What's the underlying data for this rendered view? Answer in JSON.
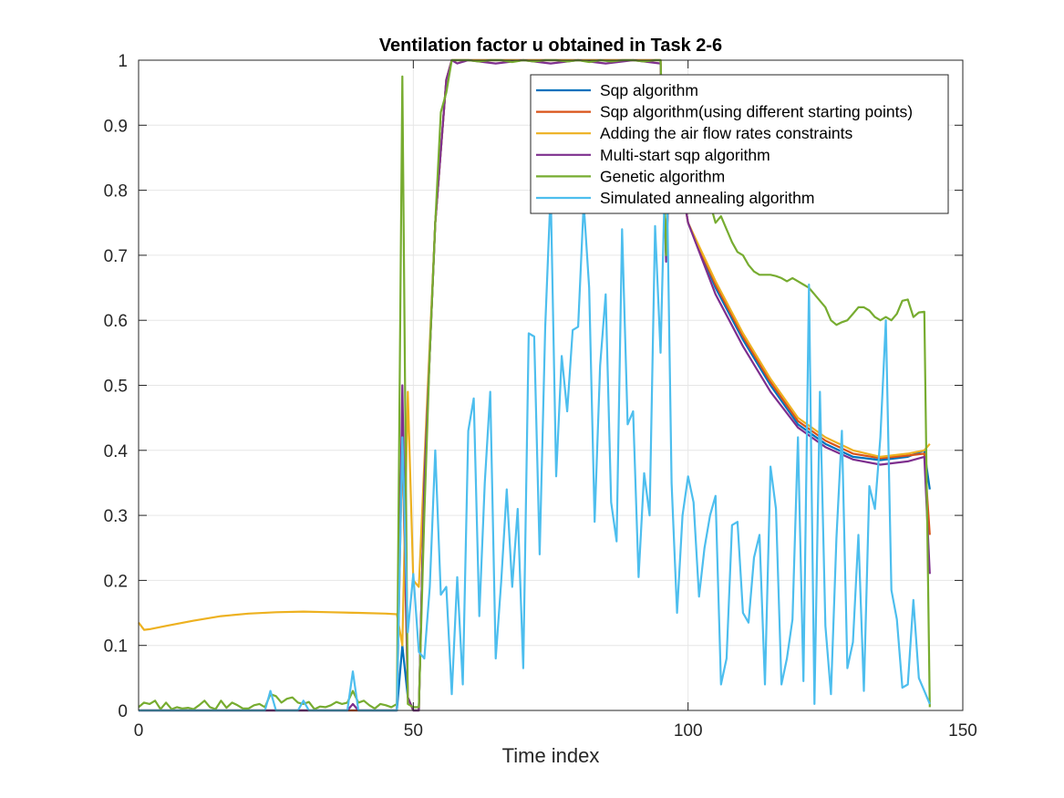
{
  "chart_data": {
    "type": "line",
    "title": "Ventilation factor u obtained in Task 2-6",
    "xlabel": "Time index",
    "ylabel": "",
    "xlim": [
      0,
      150
    ],
    "ylim": [
      0,
      1
    ],
    "xticks": [
      0,
      50,
      100,
      150
    ],
    "yticks": [
      0,
      0.1,
      0.2,
      0.3,
      0.4,
      0.5,
      0.6,
      0.7,
      0.8,
      0.9,
      1
    ],
    "xtick_labels": [
      "0",
      "50",
      "100",
      "150"
    ],
    "ytick_labels": [
      "0",
      "0.1",
      "0.2",
      "0.3",
      "0.4",
      "0.5",
      "0.6",
      "0.7",
      "0.8",
      "0.9",
      "1"
    ],
    "grid": true,
    "legend_position": "top-right",
    "series": [
      {
        "name": "Sqp algorithm",
        "color": "#0072BD",
        "x": [
          0,
          46,
          47,
          48,
          49,
          50,
          51,
          52,
          54,
          56,
          57,
          60,
          70,
          80,
          90,
          95,
          96,
          97,
          98,
          99,
          100,
          105,
          110,
          115,
          120,
          125,
          130,
          135,
          140,
          143,
          144
        ],
        "y": [
          0,
          0,
          0,
          0.1,
          0.02,
          0,
          0,
          0.35,
          0.75,
          0.97,
          1,
          1,
          1,
          1,
          1,
          1,
          0.7,
          0.93,
          0.82,
          0.8,
          0.75,
          0.65,
          0.57,
          0.5,
          0.44,
          0.41,
          0.39,
          0.385,
          0.39,
          0.4,
          0.34
        ]
      },
      {
        "name": "Sqp algorithm(using different starting points)",
        "color": "#D95319",
        "x": [
          0,
          46,
          47,
          48,
          49,
          50,
          51,
          52,
          54,
          56,
          57,
          60,
          70,
          80,
          90,
          95,
          96,
          97,
          98,
          99,
          100,
          105,
          110,
          115,
          120,
          125,
          130,
          135,
          140,
          143,
          144
        ],
        "y": [
          0,
          0,
          0,
          0.42,
          0.02,
          0,
          0,
          0.35,
          0.75,
          0.97,
          1,
          1,
          1,
          1,
          1,
          1,
          0.7,
          0.93,
          0.82,
          0.8,
          0.75,
          0.655,
          0.575,
          0.505,
          0.445,
          0.415,
          0.395,
          0.388,
          0.392,
          0.395,
          0.27
        ]
      },
      {
        "name": "Adding the air flow rates constraints",
        "color": "#EDB120",
        "x": [
          0,
          1,
          2,
          5,
          10,
          15,
          20,
          25,
          30,
          35,
          40,
          45,
          47,
          48,
          49,
          50,
          51,
          52,
          54,
          56,
          57,
          60,
          70,
          80,
          90,
          95,
          96,
          97,
          98,
          99,
          100,
          105,
          110,
          115,
          120,
          125,
          130,
          135,
          140,
          143,
          144
        ],
        "y": [
          0.135,
          0.124,
          0.125,
          0.13,
          0.138,
          0.145,
          0.149,
          0.151,
          0.152,
          0.151,
          0.15,
          0.149,
          0.148,
          0.1,
          0.49,
          0.2,
          0.19,
          0.38,
          0.75,
          0.97,
          1,
          1,
          1,
          1,
          1,
          1,
          0.7,
          0.93,
          0.82,
          0.8,
          0.75,
          0.66,
          0.58,
          0.51,
          0.45,
          0.42,
          0.4,
          0.39,
          0.395,
          0.4,
          0.41
        ]
      },
      {
        "name": "Multi-start sqp algorithm",
        "color": "#7E2F8E",
        "x": [
          0,
          38,
          39,
          40,
          41,
          46,
          47,
          48,
          49,
          50,
          51,
          52,
          54,
          56,
          57,
          58,
          60,
          65,
          70,
          75,
          80,
          85,
          90,
          95,
          96,
          97,
          98,
          99,
          100,
          105,
          110,
          115,
          120,
          125,
          130,
          135,
          140,
          143,
          144
        ],
        "y": [
          0,
          0,
          0.01,
          0,
          0,
          0,
          0,
          0.5,
          0.02,
          0,
          0,
          0.35,
          0.75,
          0.97,
          1,
          0.995,
          1,
          0.995,
          1,
          0.995,
          1,
          0.995,
          1,
          0.995,
          0.69,
          0.93,
          0.82,
          0.8,
          0.75,
          0.64,
          0.56,
          0.49,
          0.435,
          0.405,
          0.386,
          0.378,
          0.383,
          0.39,
          0.21
        ]
      },
      {
        "name": "Genetic algorithm",
        "color": "#77AC30",
        "x": [
          0,
          1,
          2,
          3,
          4,
          5,
          6,
          7,
          8,
          9,
          10,
          11,
          12,
          13,
          14,
          15,
          16,
          17,
          18,
          19,
          20,
          21,
          22,
          23,
          24,
          25,
          26,
          27,
          28,
          29,
          30,
          31,
          32,
          33,
          34,
          35,
          36,
          37,
          38,
          39,
          40,
          41,
          42,
          43,
          44,
          45,
          46,
          47,
          48,
          49,
          50,
          51,
          52,
          53,
          54,
          55,
          56,
          57,
          58,
          60,
          62,
          64,
          66,
          68,
          70,
          72,
          74,
          76,
          78,
          80,
          82,
          84,
          86,
          88,
          90,
          92,
          94,
          95,
          96,
          97,
          98,
          99,
          100,
          101,
          102,
          103,
          104,
          105,
          106,
          107,
          108,
          109,
          110,
          111,
          112,
          113,
          114,
          115,
          116,
          117,
          118,
          119,
          120,
          121,
          122,
          123,
          124,
          125,
          126,
          127,
          128,
          129,
          130,
          131,
          132,
          133,
          134,
          135,
          136,
          137,
          138,
          139,
          140,
          141,
          142,
          143,
          144
        ],
        "y": [
          0.005,
          0.012,
          0.01,
          0.015,
          0.002,
          0.012,
          0.002,
          0.005,
          0.003,
          0.004,
          0.002,
          0.008,
          0.015,
          0.005,
          0.002,
          0.015,
          0.004,
          0.012,
          0.008,
          0.003,
          0.003,
          0.008,
          0.01,
          0.005,
          0.025,
          0.022,
          0.012,
          0.018,
          0.02,
          0.012,
          0.01,
          0.013,
          0.002,
          0.006,
          0.005,
          0.008,
          0.013,
          0.01,
          0.012,
          0.03,
          0.012,
          0.015,
          0.008,
          0.003,
          0.01,
          0.008,
          0.005,
          0.01,
          0.975,
          0.01,
          0.005,
          0.005,
          0.3,
          0.55,
          0.75,
          0.92,
          0.95,
          1,
          1,
          1,
          0.998,
          1,
          1,
          0.997,
          1,
          0.998,
          1,
          1,
          0.998,
          1,
          0.997,
          1,
          0.998,
          1,
          1,
          0.998,
          1,
          1,
          0.7,
          0.95,
          0.83,
          0.82,
          0.82,
          0.79,
          0.78,
          0.77,
          0.78,
          0.75,
          0.76,
          0.74,
          0.72,
          0.705,
          0.7,
          0.685,
          0.675,
          0.67,
          0.67,
          0.67,
          0.668,
          0.665,
          0.66,
          0.665,
          0.66,
          0.655,
          0.65,
          0.64,
          0.63,
          0.62,
          0.6,
          0.593,
          0.597,
          0.6,
          0.61,
          0.62,
          0.62,
          0.615,
          0.605,
          0.6,
          0.605,
          0.6,
          0.61,
          0.63,
          0.632,
          0.605,
          0.612,
          0.613,
          0.005
        ]
      },
      {
        "name": "Simulated annealing algorithm",
        "color": "#4DBEEE",
        "x": [
          0,
          23,
          24,
          25,
          29,
          30,
          31,
          38,
          39,
          40,
          46,
          47,
          48,
          49,
          50,
          51,
          52,
          53,
          54,
          55,
          56,
          57,
          58,
          59,
          60,
          61,
          62,
          63,
          64,
          65,
          66,
          67,
          68,
          69,
          70,
          71,
          72,
          73,
          74,
          75,
          76,
          77,
          78,
          79,
          80,
          81,
          82,
          83,
          84,
          85,
          86,
          87,
          88,
          89,
          90,
          91,
          92,
          93,
          94,
          95,
          96,
          97,
          98,
          99,
          100,
          101,
          102,
          103,
          104,
          105,
          106,
          107,
          108,
          109,
          110,
          111,
          112,
          113,
          114,
          115,
          116,
          117,
          118,
          119,
          120,
          121,
          122,
          123,
          124,
          125,
          126,
          127,
          128,
          129,
          130,
          131,
          132,
          133,
          134,
          135,
          136,
          137,
          138,
          139,
          140,
          141,
          142,
          143,
          144
        ],
        "y": [
          0,
          0,
          0.03,
          0,
          0,
          0.015,
          0,
          0,
          0.06,
          0,
          0,
          0,
          0.42,
          0.12,
          0.21,
          0.09,
          0.08,
          0.19,
          0.4,
          0.178,
          0.19,
          0.025,
          0.205,
          0.04,
          0.43,
          0.48,
          0.145,
          0.35,
          0.49,
          0.08,
          0.2,
          0.34,
          0.19,
          0.31,
          0.065,
          0.58,
          0.575,
          0.24,
          0.59,
          0.8,
          0.36,
          0.545,
          0.46,
          0.585,
          0.59,
          0.78,
          0.65,
          0.29,
          0.53,
          0.64,
          0.32,
          0.26,
          0.74,
          0.44,
          0.46,
          0.205,
          0.365,
          0.3,
          0.745,
          0.55,
          0.89,
          0.35,
          0.15,
          0.3,
          0.36,
          0.32,
          0.175,
          0.25,
          0.3,
          0.33,
          0.04,
          0.08,
          0.285,
          0.29,
          0.15,
          0.135,
          0.235,
          0.27,
          0.04,
          0.375,
          0.31,
          0.04,
          0.08,
          0.14,
          0.42,
          0.045,
          0.655,
          0.01,
          0.49,
          0.13,
          0.025,
          0.265,
          0.43,
          0.065,
          0.105,
          0.27,
          0.03,
          0.345,
          0.31,
          0.42,
          0.6,
          0.185,
          0.14,
          0.035,
          0.04,
          0.17,
          0.05,
          0.03,
          0.01
        ]
      }
    ]
  }
}
